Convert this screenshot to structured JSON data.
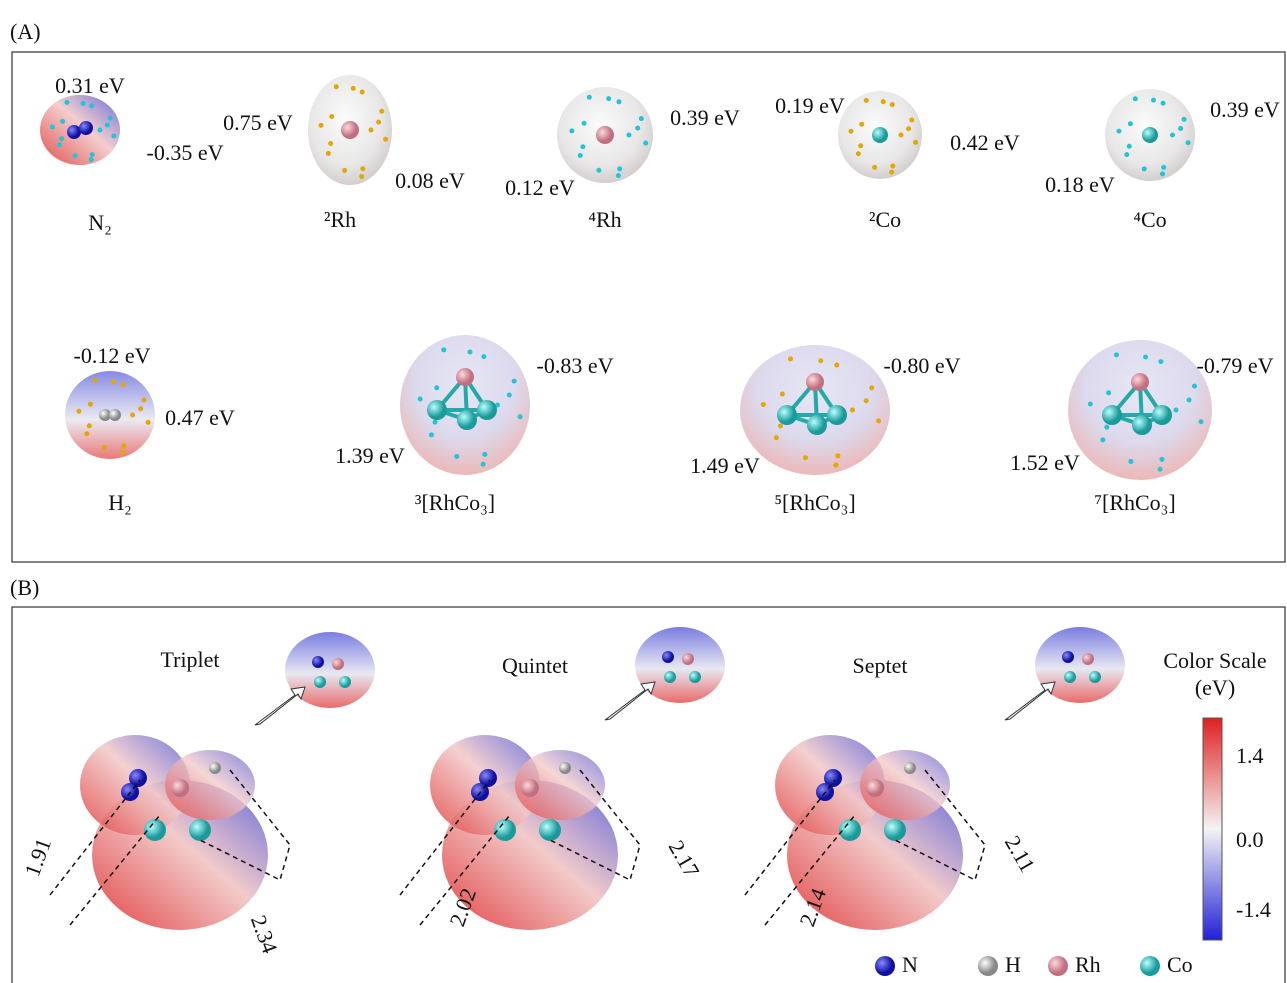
{
  "panel_a": {
    "label": "(A)",
    "items": [
      {
        "name": "N₂",
        "energies": [
          "0.31 eV",
          "-0.35 eV"
        ]
      },
      {
        "name": "²Rh",
        "energies": [
          "0.75 eV",
          "0.08 eV"
        ]
      },
      {
        "name": "⁴Rh",
        "energies": [
          "0.39 eV",
          "0.12 eV"
        ]
      },
      {
        "name": "²Co",
        "energies": [
          "0.19 eV",
          "0.42 eV"
        ]
      },
      {
        "name": "⁴Co",
        "energies": [
          "0.39 eV",
          "0.18 eV"
        ]
      },
      {
        "name": "H₂",
        "energies": [
          "-0.12 eV",
          "0.47 eV"
        ]
      },
      {
        "name": "³[RhCo₃]",
        "energies": [
          "-0.83 eV",
          "1.39 eV"
        ]
      },
      {
        "name": "⁵[RhCo₃]",
        "energies": [
          "-0.80 eV",
          "1.49 eV"
        ]
      },
      {
        "name": "⁷[RhCo₃]",
        "energies": [
          "-0.79 eV",
          "1.52 eV"
        ]
      }
    ]
  },
  "panel_b": {
    "label": "(B)",
    "structures": [
      {
        "name": "Triplet",
        "distances": [
          "1.91",
          "2.34"
        ]
      },
      {
        "name": "Quintet",
        "distances": [
          "2.02",
          "2.17"
        ]
      },
      {
        "name": "Septet",
        "distances": [
          "2.14",
          "2.11"
        ]
      }
    ],
    "color_scale": {
      "title": "Color Scale",
      "unit": "(eV)",
      "ticks": [
        "1.4",
        "0.0",
        "-1.4"
      ]
    },
    "legend": [
      "N",
      "H",
      "Rh",
      "Co"
    ]
  }
}
